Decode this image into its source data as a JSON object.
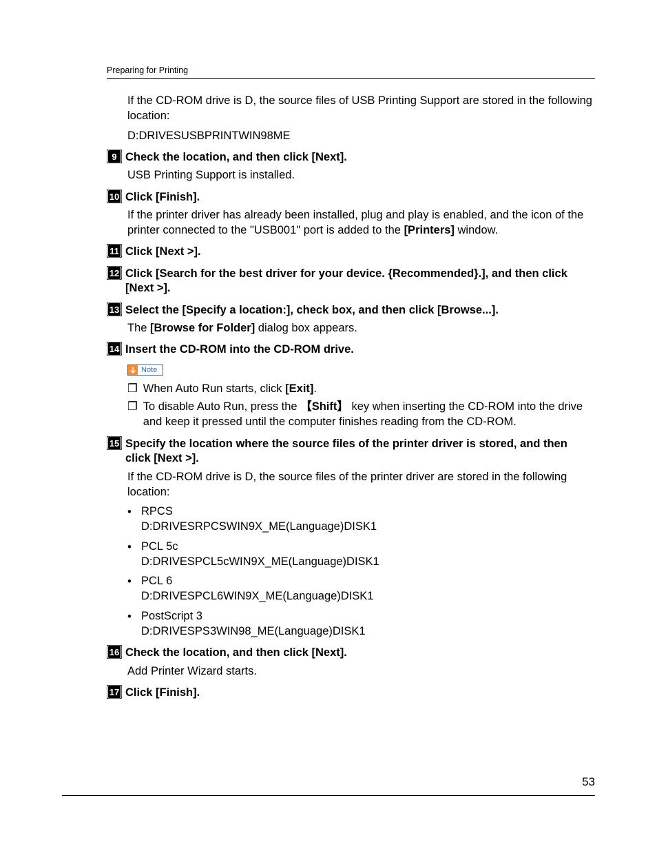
{
  "header": {
    "title": "Preparing for Printing"
  },
  "intro": {
    "line1": "If the CD-ROM drive is D, the source files of USB Printing Support are stored in the following location:",
    "line2": "D:DRIVESUSBPRINTWIN98ME"
  },
  "steps": [
    {
      "num": "9",
      "title_parts": [
        "Check the location, and then click ",
        "[Next]",
        "."
      ],
      "body": "USB Printing Support is installed."
    },
    {
      "num": "10",
      "title_parts": [
        "Click ",
        "[Finish]",
        "."
      ],
      "body_parts": [
        "If the printer driver has already been installed, plug and play is enabled, and the icon of the printer connected to the \"USB001\" port is added to the ",
        "[Printers]",
        " window."
      ]
    },
    {
      "num": "11",
      "title_parts": [
        "Click ",
        "[Next >]",
        "."
      ]
    },
    {
      "num": "12",
      "title_parts": [
        "Click ",
        "[Search for the best driver for your device. {Recommended}.]",
        ", and then click ",
        "[Next >]",
        "."
      ]
    },
    {
      "num": "13",
      "title_parts": [
        "Select the ",
        "[Specify a location:]",
        ", check box, and then click ",
        "[Browse...]",
        "."
      ],
      "body_parts": [
        "The ",
        "[Browse for Folder]",
        " dialog box appears."
      ]
    },
    {
      "num": "14",
      "title_parts": [
        "Insert the CD-ROM into the CD-ROM drive."
      ],
      "note": {
        "label": "Note",
        "items": [
          {
            "parts": [
              "When Auto Run starts, click ",
              "[Exit]",
              "."
            ]
          },
          {
            "parts": [
              "To disable Auto Run, press the ",
              "KEY:Shift",
              " key when inserting the CD-ROM into the drive and keep it pressed until the computer finishes reading from the CD-ROM."
            ]
          }
        ]
      }
    },
    {
      "num": "15",
      "title_parts": [
        "Specify the location where the source files of the printer driver is stored, and then click ",
        "[Next >]",
        "."
      ],
      "body": "If the CD-ROM drive is D, the source files of the printer driver are stored in the following location:",
      "bullets": [
        {
          "name": "RPCS",
          "path": "D:DRIVESRPCSWIN9X_ME(Language)DISK1"
        },
        {
          "name": "PCL 5c",
          "path": "D:DRIVESPCL5cWIN9X_ME(Language)DISK1"
        },
        {
          "name": "PCL 6",
          "path": "D:DRIVESPCL6WIN9X_ME(Language)DISK1"
        },
        {
          "name": "PostScript 3",
          "path": "D:DRIVESPS3WIN98_ME(Language)DISK1"
        }
      ]
    },
    {
      "num": "16",
      "title_parts": [
        "Check the location, and then click ",
        "[Next]",
        "."
      ],
      "body": "Add Printer Wizard starts."
    },
    {
      "num": "17",
      "title_parts": [
        "Click ",
        "[Finish]",
        "."
      ]
    }
  ],
  "page_number": "53",
  "colors": {
    "note_border": "#3a67c4",
    "note_arrow_bg": "#ff8a1f",
    "text": "#000000"
  }
}
